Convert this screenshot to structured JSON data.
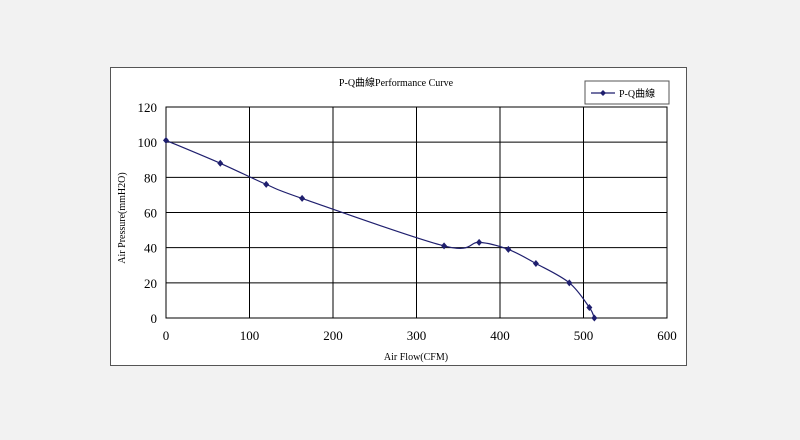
{
  "chart_data": {
    "type": "line",
    "title": "P-Q曲線Performance Curve",
    "xlabel": "Air Flow(CFM)",
    "ylabel": "Air Pressure(mmH2O)",
    "xlim": [
      0,
      600
    ],
    "ylim": [
      0,
      120
    ],
    "x_ticks": [
      "0",
      "100",
      "200",
      "300",
      "400",
      "500",
      "600"
    ],
    "y_ticks": [
      "0",
      "20",
      "40",
      "60",
      "80",
      "100",
      "120"
    ],
    "grid": true,
    "legend_position": "top-right",
    "series": [
      {
        "name": "P-Q曲線",
        "color": "#1f1f6e",
        "x": [
          0,
          65,
          120,
          163,
          333,
          375,
          410,
          443,
          483,
          507,
          513
        ],
        "y": [
          101,
          88,
          76,
          68,
          41,
          43,
          39,
          31,
          20,
          6,
          0
        ]
      }
    ]
  }
}
